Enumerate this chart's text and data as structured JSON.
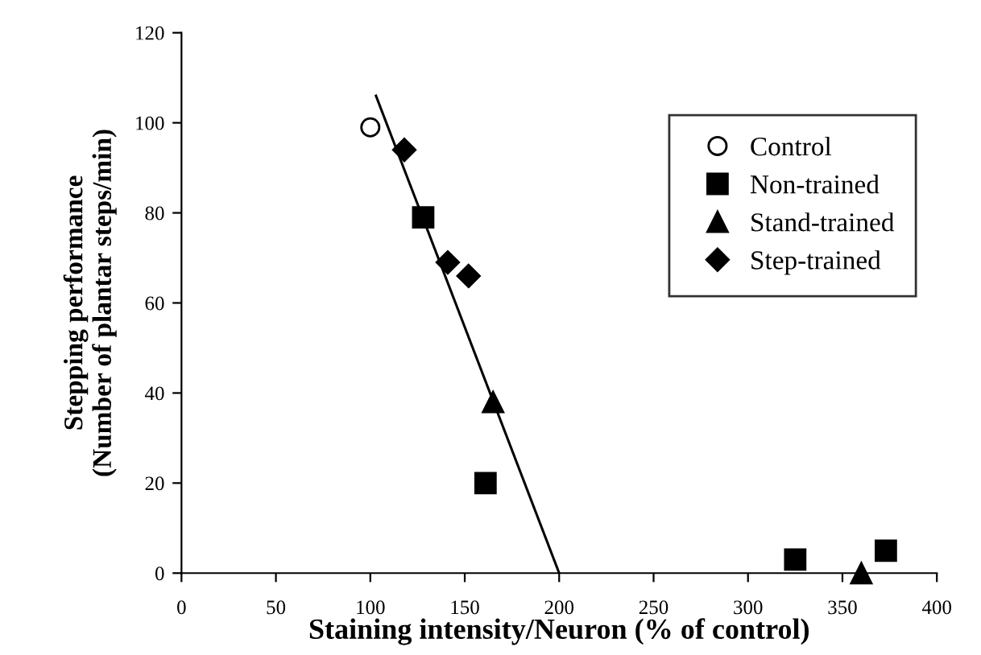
{
  "chart_data": {
    "type": "scatter",
    "xlabel": "Staining intensity/Neuron (% of control)",
    "ylabel": "Stepping performance\n(Number of plantar steps/min)",
    "xlim": [
      0,
      400
    ],
    "ylim": [
      0,
      120
    ],
    "xticks": [
      0,
      50,
      100,
      150,
      200,
      250,
      300,
      350,
      400
    ],
    "yticks": [
      0,
      20,
      40,
      60,
      80,
      100,
      120
    ],
    "grid": false,
    "legend": "right",
    "series": [
      {
        "name": "Control",
        "color": "#000000",
        "marker": "circle",
        "x": [
          100
        ],
        "values": [
          99
        ]
      },
      {
        "name": "Non-trained",
        "color": "#000000",
        "marker": "square",
        "x": [
          128,
          161,
          325,
          373
        ],
        "values": [
          79,
          20,
          3,
          5
        ]
      },
      {
        "name": "Stand-trained",
        "color": "#000000",
        "marker": "triangle",
        "x": [
          165,
          360
        ],
        "values": [
          38,
          0
        ]
      },
      {
        "name": "Step-trained",
        "color": "#000000",
        "marker": "diamond",
        "x": [
          118,
          141,
          152
        ],
        "values": [
          94,
          69,
          66
        ]
      },
      {
        "type": "line",
        "color": "#000000",
        "marker": "none",
        "line_style": "solid",
        "x": [
          103,
          200
        ],
        "values": [
          106,
          0
        ]
      }
    ]
  }
}
